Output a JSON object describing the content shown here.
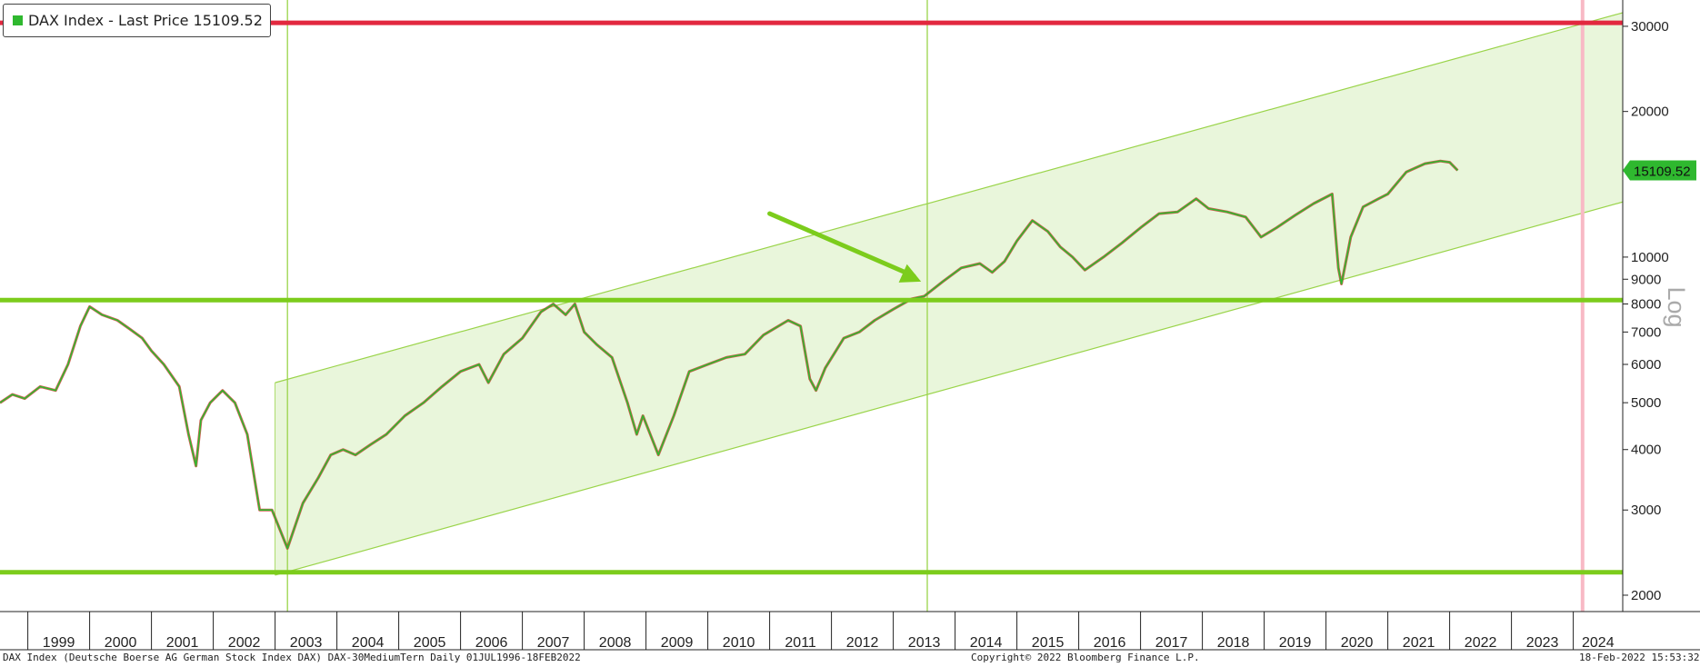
{
  "legend": {
    "label": "DAX Index - Last Price 15109.52",
    "swatch_color": "#2fb82f"
  },
  "footer": {
    "left": "DAX Index (Deutsche Boerse AG German Stock Index DAX) DAX-30MediumTern  Daily 01JUL1996-18FEB2022",
    "center": "Copyright© 2022 Bloomberg Finance L.P.",
    "right": "18-Feb-2022 15:53:32"
  },
  "chart_data": {
    "type": "line",
    "scale": "log",
    "y_axis_label": "Log",
    "x_axis": {
      "range": [
        1998.55,
        2024.8
      ],
      "tick_labels": [
        "1999",
        "2000",
        "2001",
        "2002",
        "2003",
        "2004",
        "2005",
        "2006",
        "2007",
        "2008",
        "2009",
        "2010",
        "2011",
        "2012",
        "2013",
        "2014",
        "2015",
        "2016",
        "2017",
        "2018",
        "2019",
        "2020",
        "2021",
        "2022",
        "2023",
        "2024"
      ]
    },
    "y_axis": {
      "range": [
        1850,
        34000
      ],
      "ticks": [
        2000,
        3000,
        4000,
        5000,
        6000,
        7000,
        8000,
        9000,
        10000,
        20000,
        30000
      ]
    },
    "last_price": {
      "label": "15109.52",
      "value": 15109.52,
      "color": "#2fb82f"
    },
    "series": [
      {
        "values_x": [
          1998.55,
          1998.75,
          1998.95,
          1999.2,
          1999.45,
          1999.65,
          1999.85,
          2000.0,
          2000.2,
          2000.45,
          2000.65,
          2000.85,
          2001.0,
          2001.2,
          2001.45,
          2001.6,
          2001.72,
          2001.8,
          2001.95,
          2002.15,
          2002.35,
          2002.55,
          2002.75,
          2002.95,
          2003.2,
          2003.45,
          2003.7,
          2003.9,
          2004.1,
          2004.3,
          2004.55,
          2004.8,
          2005.1,
          2005.4,
          2005.7,
          2006.0,
          2006.3,
          2006.45,
          2006.7,
          2007.0,
          2007.3,
          2007.5,
          2007.7,
          2007.85,
          2008.0,
          2008.2,
          2008.45,
          2008.7,
          2008.85,
          2008.95,
          2009.2,
          2009.45,
          2009.7,
          2010.0,
          2010.3,
          2010.6,
          2010.9,
          2011.3,
          2011.5,
          2011.65,
          2011.75,
          2011.9,
          2012.2,
          2012.45,
          2012.7,
          2013.0,
          2013.3,
          2013.5,
          2013.8,
          2014.1,
          2014.4,
          2014.6,
          2014.8,
          2015.0,
          2015.25,
          2015.5,
          2015.7,
          2015.9,
          2016.1,
          2016.4,
          2016.7,
          2017.0,
          2017.3,
          2017.6,
          2017.9,
          2018.1,
          2018.4,
          2018.7,
          2018.95,
          2019.2,
          2019.5,
          2019.8,
          2020.1,
          2020.2,
          2020.25,
          2020.4,
          2020.6,
          2020.85,
          2021.0,
          2021.3,
          2021.6,
          2021.85,
          2022.0,
          2022.13
        ],
        "values_y": [
          5000,
          5200,
          5100,
          5400,
          5300,
          6000,
          7200,
          7900,
          7600,
          7400,
          7100,
          6800,
          6400,
          6000,
          5400,
          4300,
          3700,
          4600,
          5000,
          5300,
          5000,
          4300,
          3000,
          3000,
          2500,
          3100,
          3500,
          3900,
          4000,
          3900,
          4100,
          4300,
          4700,
          5000,
          5400,
          5800,
          6000,
          5500,
          6300,
          6800,
          7700,
          8000,
          7600,
          8000,
          7000,
          6600,
          6200,
          5000,
          4300,
          4700,
          3900,
          4700,
          5800,
          6000,
          6200,
          6300,
          6900,
          7400,
          7200,
          5600,
          5300,
          5900,
          6800,
          7000,
          7400,
          7800,
          8200,
          8300,
          8900,
          9500,
          9700,
          9300,
          9800,
          10800,
          11900,
          11300,
          10500,
          10000,
          9400,
          10000,
          10700,
          11500,
          12300,
          12400,
          13200,
          12600,
          12400,
          12100,
          11000,
          11500,
          12200,
          12900,
          13500,
          9500,
          8800,
          11000,
          12700,
          13200,
          13500,
          15000,
          15600,
          15800,
          15700,
          15109.52
        ],
        "color": "#2fb82f"
      }
    ],
    "annotations": {
      "horizontal_lines": [
        {
          "value": 30500,
          "color": "#e2283f"
        },
        {
          "value": 8150,
          "color": "#7ccc1c"
        },
        {
          "value": 2230,
          "color": "#7ccc1c"
        }
      ],
      "vertical_lines": [
        {
          "x": 2003.2,
          "color": "#9ad44a"
        },
        {
          "x": 2013.55,
          "color": "#9ad44a"
        },
        {
          "x": 2024.15,
          "color": "#f8b9c5"
        }
      ],
      "channel": {
        "x_start": 2003.0,
        "x_end": 2024.8,
        "upper_start": 5500,
        "upper_end": 32000,
        "lower_start": 2200,
        "lower_end": 13000,
        "fill": "#e9f6db",
        "edge": "#9ad44a"
      },
      "arrow": {
        "from": [
          2011.0,
          12300
        ],
        "to": [
          2013.45,
          8900
        ],
        "color": "#7ccc1c"
      }
    }
  }
}
